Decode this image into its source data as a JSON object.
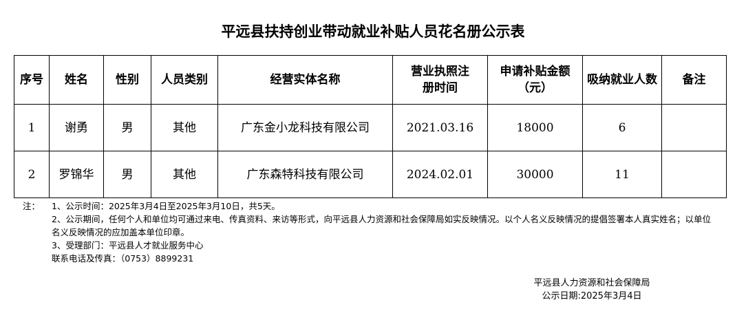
{
  "title": "平远县扶持创业带动就业补贴人员花名册公示表",
  "headers": [
    "序号",
    "姓名",
    "性别",
    "人员类别",
    "经营实体名称",
    "营业执照注册时间",
    "申请补贴金额（元）",
    "吸纳就业人数",
    "备注"
  ],
  "rows": [
    [
      "1",
      "谢勇",
      "男",
      "其他",
      "广东金小龙科技有限公司",
      "2021.03.16",
      "18000",
      "6",
      ""
    ],
    [
      "2",
      "罗锦华",
      "男",
      "其他",
      "广东森特科技有限公司",
      "2024.02.01",
      "30000",
      "11",
      ""
    ]
  ],
  "notes": {
    "label": "注：",
    "lines": [
      "1、公示时间：2025年3月4日至2025年3月10日，共5天。",
      "2、公示期间，任何个人和单位均可通过来电、传真资料、来访等形式，向平远县人力资源和社会保障局如实反映情况。以个人名义反映情况的提倡签署本人真实姓名；以单位名义反映情况的应加盖本单位印章。",
      "3、受理部门：平远县人才就业服务中心",
      "联系电话及传真：（0753）8899231"
    ]
  },
  "signature": {
    "org": "平远县人力资源和社会保障局",
    "date": "公示日期:2025年3月4日"
  }
}
